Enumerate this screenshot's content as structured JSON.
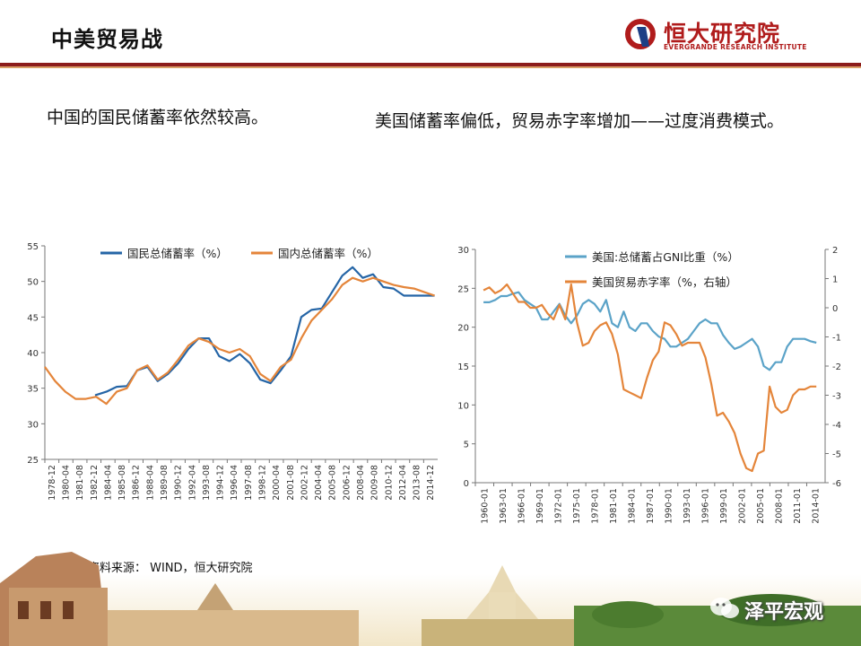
{
  "header": {
    "title": "中美贸易战",
    "logo_text": "恒大研究院",
    "logo_subtext": "EVERGRANDE RESEARCH INSTITUTE"
  },
  "left_panel": {
    "heading": "中国的国民储蓄率依然较高。"
  },
  "right_panel": {
    "heading": "美国储蓄率偏低，贸易赤字率增加——过度消费模式。"
  },
  "footer": {
    "source": "资料来源：  WIND，恒大研究院",
    "watermark": "泽平宏观"
  },
  "colors": {
    "accent_dark_red": "#8c1c1c",
    "series_blue": "#2565a6",
    "series_orange": "#e4853a",
    "series_lightblue": "#5ba3c8"
  },
  "chart_data": [
    {
      "type": "line",
      "x_tick_labels": [
        "1978-12",
        "1980-04",
        "1981-08",
        "1982-12",
        "1984-04",
        "1985-08",
        "1986-12",
        "1988-04",
        "1989-08",
        "1990-12",
        "1992-04",
        "1993-08",
        "1994-12",
        "1996-04",
        "1997-08",
        "1998-12",
        "2000-04",
        "2001-08",
        "2002-12",
        "2004-04",
        "2005-08",
        "2006-12",
        "2008-04",
        "2009-08",
        "2010-12",
        "2012-04",
        "2013-08",
        "2014-12"
      ],
      "ylim": [
        25,
        55
      ],
      "y_ticks": [
        25,
        30,
        35,
        40,
        45,
        50,
        55
      ],
      "legend_position": "top",
      "series": [
        {
          "name": "国民总储蓄率（%）",
          "color": "#2565a6",
          "x": [
            1982.9,
            1984.0,
            1985.0,
            1986.0,
            1987.0,
            1988.0,
            1989.0,
            1990.0,
            1991.0,
            1992.0,
            1993.0,
            1994.0,
            1995.0,
            1996.0,
            1997.0,
            1998.0,
            1999.0,
            2000.0,
            2001.0,
            2002.0,
            2003.0,
            2004.0,
            2005.0,
            2006.0,
            2007.0,
            2008.0,
            2009.0,
            2010.0,
            2011.0,
            2012.0,
            2013.0,
            2014.0,
            2015.0,
            2016.0
          ],
          "y": [
            34,
            34.5,
            35.2,
            35.3,
            37.5,
            38,
            36,
            37,
            38.5,
            40.5,
            42,
            42,
            39.5,
            38.8,
            39.8,
            38.5,
            36.2,
            35.7,
            37.5,
            39.5,
            45,
            46,
            46.2,
            48.5,
            50.8,
            52,
            50.5,
            51,
            49.2,
            49,
            48,
            48,
            48,
            48
          ]
        },
        {
          "name": "国内总储蓄率（%）",
          "color": "#e4853a",
          "x": [
            1978.0,
            1979.0,
            1980.0,
            1981.0,
            1982.0,
            1983.0,
            1984.0,
            1985.0,
            1986.0,
            1987.0,
            1988.0,
            1989.0,
            1990.0,
            1991.0,
            1992.0,
            1993.0,
            1994.0,
            1995.0,
            1996.0,
            1997.0,
            1998.0,
            1999.0,
            2000.0,
            2001.0,
            2002.0,
            2003.0,
            2004.0,
            2005.0,
            2006.0,
            2007.0,
            2008.0,
            2009.0,
            2010.0,
            2011.0,
            2012.0,
            2013.0,
            2014.0,
            2015.0,
            2016.0
          ],
          "y": [
            38,
            36,
            34.5,
            33.5,
            33.5,
            33.8,
            32.8,
            34.5,
            35,
            37.5,
            38.2,
            36.2,
            37.2,
            39,
            41,
            42,
            41.5,
            40.5,
            40,
            40.5,
            39.5,
            37,
            36,
            38,
            39,
            42,
            44.5,
            46,
            47.5,
            49.5,
            50.5,
            50,
            50.5,
            50,
            49.5,
            49.2,
            49,
            48.5,
            48
          ]
        }
      ]
    },
    {
      "type": "line",
      "x_tick_labels": [
        "1960-01",
        "1963-01",
        "1966-01",
        "1969-01",
        "1972-01",
        "1975-01",
        "1978-01",
        "1981-01",
        "1984-01",
        "1987-01",
        "1990-01",
        "1993-01",
        "1996-01",
        "1999-01",
        "2002-01",
        "2005-01",
        "2008-01",
        "2011-01",
        "2014-01"
      ],
      "ylim": [
        0,
        30
      ],
      "y_ticks": [
        0,
        5,
        10,
        15,
        20,
        25,
        30
      ],
      "y2lim": [
        -6,
        2
      ],
      "y2_ticks": [
        -6,
        -5,
        -4,
        -3,
        -2,
        -1,
        0,
        1,
        2
      ],
      "legend_position": "top",
      "series": [
        {
          "name": "美国:总储蓄占GNI比重（%）",
          "color": "#5ba3c8",
          "axis": "left",
          "x": [
            1960,
            1961,
            1962,
            1963,
            1964,
            1965,
            1966,
            1967,
            1968,
            1969,
            1970,
            1971,
            1972,
            1973,
            1974,
            1975,
            1976,
            1977,
            1978,
            1979,
            1980,
            1981,
            1982,
            1983,
            1984,
            1985,
            1986,
            1987,
            1988,
            1989,
            1990,
            1991,
            1992,
            1993,
            1994,
            1995,
            1996,
            1997,
            1998,
            1999,
            2000,
            2001,
            2002,
            2003,
            2004,
            2005,
            2006,
            2007,
            2008,
            2009,
            2010,
            2011,
            2012,
            2013,
            2014,
            2015,
            2016,
            2017
          ],
          "y": [
            23.2,
            23.2,
            23.5,
            24,
            24,
            24.3,
            24.5,
            23.5,
            23,
            22.5,
            21,
            21,
            22,
            23,
            21.5,
            20.5,
            21.5,
            23,
            23.5,
            23,
            22,
            23.5,
            20.5,
            20,
            22,
            20,
            19.5,
            20.5,
            20.5,
            19.5,
            18.8,
            18.5,
            17.5,
            17.5,
            18,
            18.5,
            19.5,
            20.5,
            21,
            20.5,
            20.5,
            19,
            18,
            17.2,
            17.5,
            18,
            18.5,
            17.5,
            15,
            14.5,
            15.5,
            15.5,
            17.5,
            18.5,
            18.5,
            18.5,
            18.2,
            18
          ]
        },
        {
          "name": "美国贸易赤字率（%，右轴）",
          "color": "#e4853a",
          "axis": "right",
          "x": [
            1960,
            1961,
            1962,
            1963,
            1964,
            1965,
            1966,
            1967,
            1968,
            1969,
            1970,
            1971,
            1972,
            1973,
            1974,
            1975,
            1976,
            1977,
            1978,
            1979,
            1980,
            1981,
            1982,
            1983,
            1984,
            1985,
            1986,
            1987,
            1988,
            1989,
            1990,
            1991,
            1992,
            1993,
            1994,
            1995,
            1996,
            1997,
            1998,
            1999,
            2000,
            2001,
            2002,
            2003,
            2004,
            2005,
            2006,
            2007,
            2008,
            2009,
            2010,
            2011,
            2012,
            2013,
            2014,
            2015,
            2016,
            2017
          ],
          "y": [
            0.6,
            0.7,
            0.5,
            0.6,
            0.8,
            0.5,
            0.2,
            0.2,
            0.0,
            0.0,
            0.1,
            -0.2,
            -0.4,
            0.1,
            -0.4,
            0.8,
            -0.5,
            -1.3,
            -1.2,
            -0.8,
            -0.6,
            -0.5,
            -0.9,
            -1.6,
            -2.8,
            -2.9,
            -3.0,
            -3.1,
            -2.4,
            -1.8,
            -1.5,
            -0.5,
            -0.6,
            -0.9,
            -1.3,
            -1.2,
            -1.2,
            -1.2,
            -1.7,
            -2.6,
            -3.7,
            -3.6,
            -3.9,
            -4.3,
            -5.0,
            -5.5,
            -5.6,
            -5.0,
            -4.9,
            -2.7,
            -3.4,
            -3.6,
            -3.5,
            -3.0,
            -2.8,
            -2.8,
            -2.7,
            -2.7
          ]
        }
      ]
    }
  ]
}
